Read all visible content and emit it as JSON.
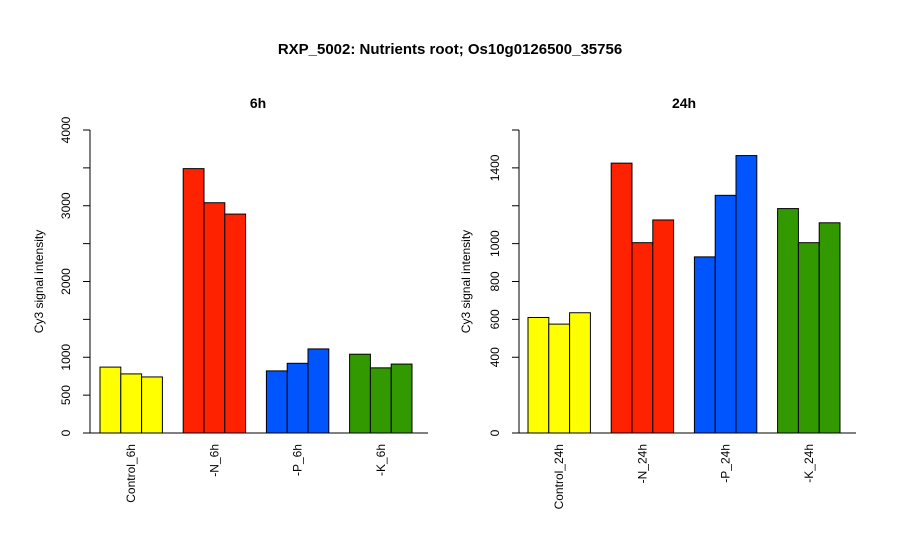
{
  "title": "RXP_5002: Nutrients root; Os10g0126500_35756",
  "colors": {
    "control": "#ffff00",
    "n": "#ff2200",
    "p": "#0055ff",
    "k": "#339900"
  },
  "chart_data": [
    {
      "type": "bar",
      "title": "6h",
      "ylabel": "Cy3 signal intensity",
      "ylim": [
        0,
        4000
      ],
      "yticks": [
        0,
        500,
        1000,
        2000,
        3000,
        4000
      ],
      "yminor": [
        1500,
        2500,
        3500
      ],
      "categories": [
        "Control_6h",
        "-N_6h",
        "-P_6h",
        "-K_6h"
      ],
      "values": [
        [
          870,
          780,
          740
        ],
        [
          3490,
          3040,
          2890
        ],
        [
          820,
          920,
          1110
        ],
        [
          1040,
          860,
          910
        ]
      ],
      "grid": false
    },
    {
      "type": "bar",
      "title": "24h",
      "ylabel": "Cy3 signal intensity",
      "ylim": [
        0,
        1600
      ],
      "yticks": [
        0,
        400,
        600,
        800,
        1000,
        1400
      ],
      "yminor": [
        1200,
        1600
      ],
      "categories": [
        "Control_24h",
        "-N_24h",
        "-P_24h",
        "-K_24h"
      ],
      "values": [
        [
          610,
          575,
          635
        ],
        [
          1425,
          1005,
          1125
        ],
        [
          930,
          1255,
          1465
        ],
        [
          1185,
          1005,
          1110
        ]
      ],
      "grid": false
    }
  ]
}
